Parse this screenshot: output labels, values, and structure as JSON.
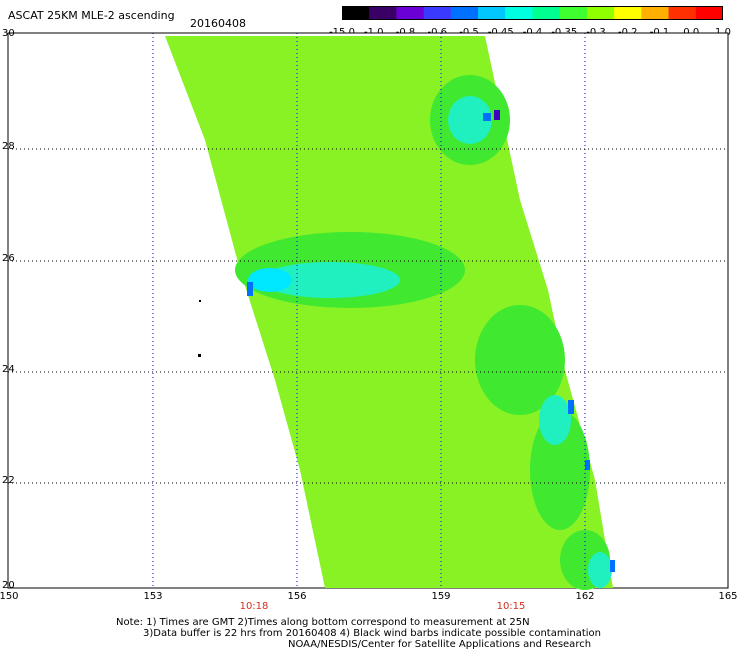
{
  "header": {
    "title": "ASCAT 25KM MLE-2 ascending",
    "date": "20160408"
  },
  "colorbar": {
    "labels": [
      "-15.0",
      "-1.0",
      "-0.8",
      "-0.6",
      "-0.5",
      "-0.45",
      "-0.4",
      "-0.35",
      "-0.3",
      "-0.2",
      "-0.1",
      "0.0",
      "1.0"
    ],
    "colors": [
      "#000000",
      "#3a0066",
      "#6b00d6",
      "#3a3aff",
      "#0070ff",
      "#00c8ff",
      "#00ffe0",
      "#00ff90",
      "#40ff30",
      "#90ff00",
      "#ffff00",
      "#ffb000",
      "#ff3000",
      "#ff0000"
    ]
  },
  "map": {
    "lon_labels": [
      "150",
      "153",
      "156",
      "159",
      "162",
      "165"
    ],
    "lat_labels": [
      "30",
      "28",
      "26",
      "24",
      "22",
      "20"
    ],
    "times": [
      "10:18",
      "10:15"
    ],
    "swath_color": "#88f225",
    "gridline_color": "#0000ff"
  },
  "notes": {
    "line1": "Note: 1) Times are GMT 2)Times along bottom correspond to measurement at 25N",
    "line2": "3)Data buffer is 22 hrs from 20160408 4) Black wind barbs indicate possible contamination",
    "line3": "NOAA/NESDIS/Center for Satellite Applications and Research"
  }
}
